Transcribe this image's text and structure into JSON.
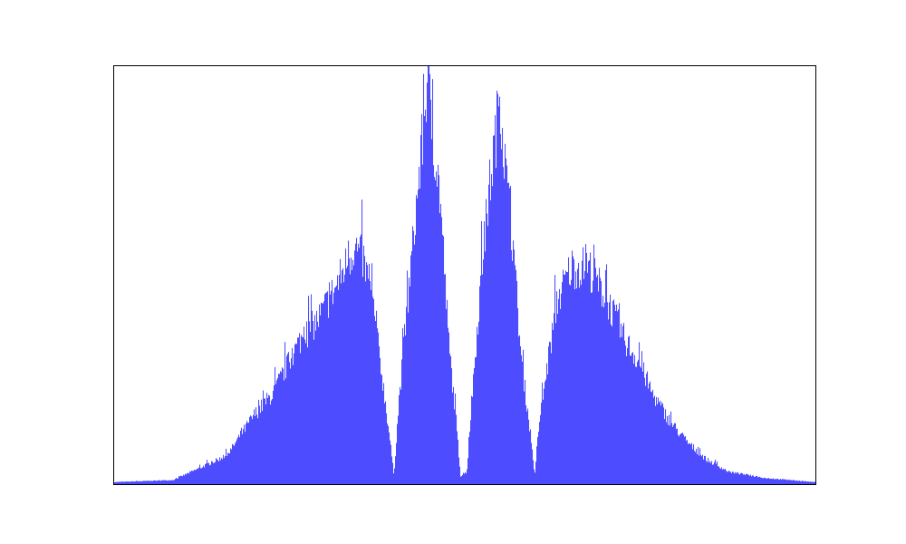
{
  "chart_data": {
    "type": "bar",
    "title": "",
    "xlabel": "",
    "ylabel": "",
    "xlim": [
      0,
      100
    ],
    "ylim": [
      0,
      100
    ],
    "grid": false,
    "legend": "none",
    "bar_color": "#4d4dff",
    "series": [
      {
        "x": [
          0,
          8.4,
          9.7,
          16.1,
          20,
          22.6,
          26.5,
          29,
          31.6,
          34.2,
          35.5,
          36.8,
          38.1,
          39.4,
          39.9,
          40.6,
          41.9,
          43.2,
          44.3,
          44.6,
          45.3,
          46.5,
          47.7,
          48.8,
          49.4,
          50.3,
          50.97,
          52.3,
          53.5,
          54.6,
          55,
          55.6,
          56.8,
          58.1,
          59.4,
          60,
          60.6,
          61.9,
          63.2,
          65.2,
          67.7,
          70.3,
          72.9,
          74.8,
          76.8,
          79.4,
          81.9,
          84.5,
          87.7,
          92.9,
          100
        ],
        "values": [
          0.5,
          1,
          2,
          7,
          17,
          22,
          35,
          40,
          48,
          58,
          55,
          45,
          28,
          10,
          2,
          20,
          45,
          70,
          90,
          100,
          88,
          70,
          35,
          15,
          2,
          3,
          20,
          50,
          72,
          88,
          98,
          80,
          60,
          30,
          12,
          2,
          15,
          30,
          45,
          53,
          53,
          45,
          35,
          30,
          22,
          15,
          10,
          6,
          3,
          1.5,
          0.5
        ]
      }
    ]
  }
}
